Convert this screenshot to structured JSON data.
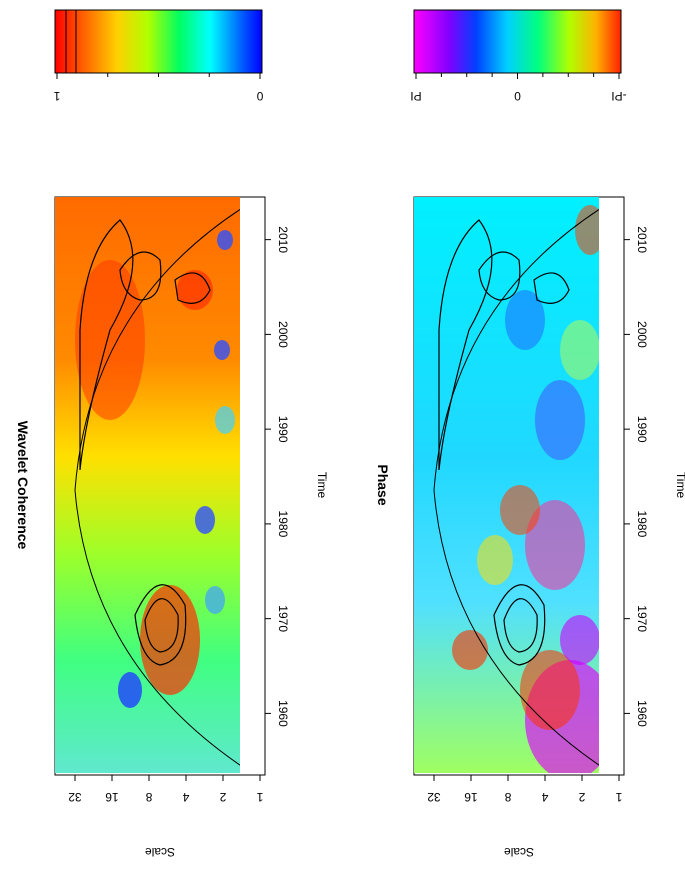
{
  "chart_data": [
    {
      "type": "heatmap",
      "title": "Wavelet Coherence",
      "xlabel": "Time",
      "ylabel": "Scale",
      "x_ticks": [
        1960,
        1970,
        1980,
        1990,
        2000,
        2010
      ],
      "xlim": [
        1953.5,
        2014.5
      ],
      "y_ticks": [
        1,
        2,
        4,
        8,
        16,
        32
      ],
      "y_tick_labels": [
        "1",
        "2",
        "4",
        "8",
        "16",
        "32"
      ],
      "ylim": [
        1,
        32
      ],
      "y_scale": "log2",
      "colorbar": {
        "ticks": [
          "1",
          "0"
        ],
        "range": [
          0,
          1
        ],
        "palette": "red-yellow-green-cyan-blue"
      },
      "contours": [
        {
          "center_x": 1972,
          "center_scale": 4.5,
          "note": "significant region"
        },
        {
          "center_x": 1990,
          "center_scale": 22
        },
        {
          "center_x": 2006,
          "center_scale": 3.5
        },
        {
          "center_x": 2007.5,
          "center_scale": 11
        }
      ],
      "cone_of_influence": true
    },
    {
      "type": "heatmap",
      "title": "Phase",
      "xlabel": "Time",
      "ylabel": "Scale",
      "x_ticks": [
        1960,
        1970,
        1980,
        1990,
        2000,
        2010
      ],
      "xlim": [
        1953.5,
        2014.5
      ],
      "y_ticks": [
        1,
        2,
        4,
        8,
        16,
        32
      ],
      "y_tick_labels": [
        "1",
        "2",
        "4",
        "8",
        "16",
        "32"
      ],
      "ylim": [
        1,
        32
      ],
      "y_scale": "log2",
      "colorbar": {
        "ticks": [
          "PI",
          "0",
          "-PI"
        ],
        "range": [
          -3.1416,
          3.1416
        ],
        "palette": "magenta-blue-cyan-green-yellow-red"
      },
      "contours": [
        {
          "center_x": 1972,
          "center_scale": 4.5
        },
        {
          "center_x": 1990,
          "center_scale": 22
        },
        {
          "center_x": 2006,
          "center_scale": 3.5
        }
      ],
      "cone_of_influence": true
    }
  ]
}
